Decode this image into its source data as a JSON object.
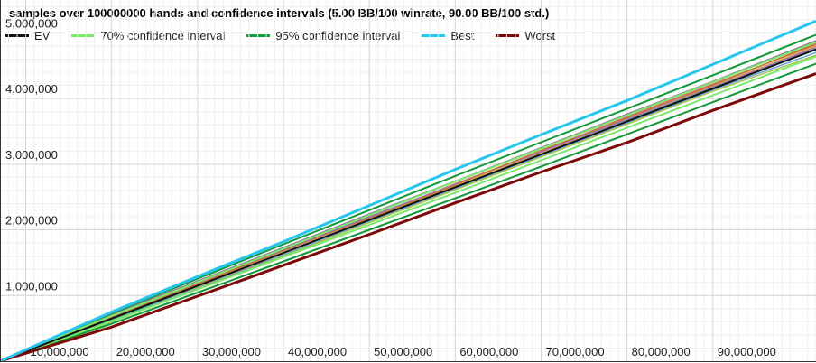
{
  "chart_data": {
    "type": "line",
    "title": "samples over 100000000 hands and confidence intervals (5.00 BB/100 winrate, 90.00 BB/100 std.)",
    "xlabel": "",
    "ylabel": "",
    "xlim": [
      7000000,
      102000000
    ],
    "ylim": [
      0,
      5500000
    ],
    "x_ticks": [
      {
        "value": 10000000,
        "label": "10,000,000"
      },
      {
        "value": 20000000,
        "label": "20,000,000"
      },
      {
        "value": 30000000,
        "label": "30,000,000"
      },
      {
        "value": 40000000,
        "label": "40,000,000"
      },
      {
        "value": 50000000,
        "label": "50,000,000"
      },
      {
        "value": 60000000,
        "label": "60,000,000"
      },
      {
        "value": 70000000,
        "label": "70,000,000"
      },
      {
        "value": 80000000,
        "label": "80,000,000"
      },
      {
        "value": 90000000,
        "label": "90,000,000"
      }
    ],
    "y_ticks": [
      {
        "value": 1000000,
        "label": "1,000,000"
      },
      {
        "value": 2000000,
        "label": "2,000,000"
      },
      {
        "value": 3000000,
        "label": "3,000,000"
      },
      {
        "value": 4000000,
        "label": "4,000,000"
      },
      {
        "value": 5000000,
        "label": "5,000,000"
      }
    ],
    "grid": true,
    "legend_position": "top-left",
    "legend": [
      {
        "name": "EV",
        "color": "#111111"
      },
      {
        "name": "70% confidence interval",
        "color": "#7aea6a"
      },
      {
        "name": "95% confidence interval",
        "color": "#129a3a"
      },
      {
        "name": "Best",
        "color": "#27c6ee"
      },
      {
        "name": "Worst",
        "color": "#7d0a0a"
      }
    ],
    "x": [
      7000000,
      20000000,
      30000000,
      40000000,
      50000000,
      60000000,
      70000000,
      80000000,
      90000000,
      102000000
    ],
    "series": [
      {
        "name": "EV",
        "color": "#111111",
        "width": 2,
        "values": [
          0,
          650000,
          1150000,
          1650000,
          2150000,
          2650000,
          3150000,
          3650000,
          4150000,
          4750000
        ]
      },
      {
        "name": "70% confidence interval",
        "color": "#7aea6a",
        "width": 2,
        "values": [
          0,
          690000,
          1205000,
          1715000,
          2225000,
          2735000,
          3240000,
          3745000,
          4250000,
          4860000
        ]
      },
      {
        "name": "70% confidence interval",
        "color": "#7aea6a",
        "width": 2,
        "values": [
          0,
          610000,
          1095000,
          1585000,
          2075000,
          2565000,
          3060000,
          3555000,
          4050000,
          4640000
        ]
      },
      {
        "name": "95% confidence interval",
        "color": "#129a3a",
        "width": 2,
        "values": [
          0,
          730000,
          1255000,
          1780000,
          2300000,
          2820000,
          3335000,
          3845000,
          4355000,
          4970000
        ]
      },
      {
        "name": "95% confidence interval",
        "color": "#129a3a",
        "width": 2,
        "values": [
          0,
          570000,
          1045000,
          1520000,
          2000000,
          2480000,
          2965000,
          3455000,
          3945000,
          4530000
        ]
      },
      {
        "name": "Best",
        "color": "#27c6ee",
        "width": 3,
        "values": [
          0,
          750000,
          1290000,
          1820000,
          2370000,
          2920000,
          3450000,
          3970000,
          4520000,
          5180000
        ]
      },
      {
        "name": "Worst",
        "color": "#7d0a0a",
        "width": 3,
        "values": [
          0,
          520000,
          990000,
          1460000,
          1930000,
          2410000,
          2880000,
          3330000,
          3820000,
          4380000
        ]
      }
    ],
    "samples": [
      {
        "color": "#d86a6a",
        "values": [
          0,
          680000,
          1180000,
          1700000,
          2190000,
          2700000,
          3200000,
          3720000,
          4220000,
          4820000
        ]
      },
      {
        "color": "#e0b030",
        "values": [
          0,
          640000,
          1130000,
          1640000,
          2160000,
          2660000,
          3170000,
          3670000,
          4180000,
          4800000
        ]
      },
      {
        "color": "#9b6fc9",
        "values": [
          0,
          700000,
          1210000,
          1700000,
          2200000,
          2690000,
          3190000,
          3680000,
          4170000,
          4780000
        ]
      },
      {
        "color": "#6aa0d8",
        "values": [
          0,
          620000,
          1110000,
          1620000,
          2130000,
          2630000,
          3130000,
          3630000,
          4130000,
          4700000
        ]
      },
      {
        "color": "#c07a3a",
        "values": [
          0,
          660000,
          1170000,
          1680000,
          2180000,
          2680000,
          3210000,
          3700000,
          4200000,
          4840000
        ]
      },
      {
        "color": "#a8c84a",
        "values": [
          0,
          600000,
          1100000,
          1600000,
          2110000,
          2610000,
          3110000,
          3610000,
          4110000,
          4660000
        ]
      },
      {
        "color": "#8a5a9a",
        "values": [
          0,
          710000,
          1220000,
          1730000,
          2240000,
          2740000,
          3250000,
          3760000,
          4260000,
          4880000
        ]
      },
      {
        "color": "#4aa890",
        "values": [
          0,
          630000,
          1140000,
          1650000,
          2150000,
          2650000,
          3150000,
          3660000,
          4160000,
          4740000
        ]
      }
    ]
  }
}
